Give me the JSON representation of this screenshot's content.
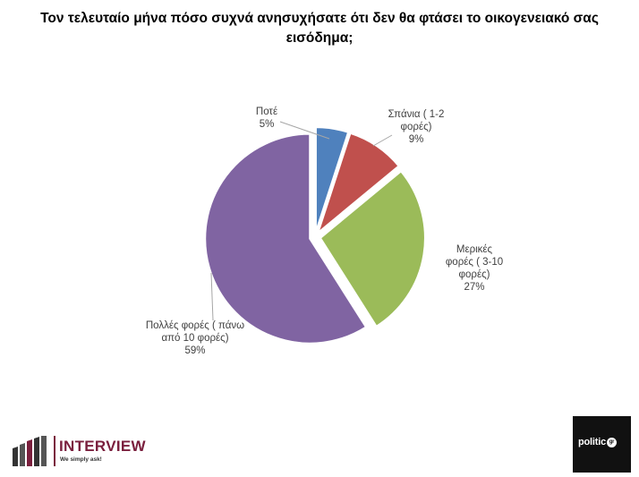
{
  "chart_data": {
    "type": "pie",
    "title_lines": [
      "Τον τελευταίο μήνα πόσο συχνά ανησυχήσατε ότι δεν θα φτάσει το οικογενειακό σας",
      "εισόδημα;"
    ],
    "slices": [
      {
        "label_lines": [
          "Ποτέ",
          "5%"
        ],
        "value": 5,
        "color": "#4f81bd"
      },
      {
        "label_lines": [
          "Σπάνια ( 1-2",
          "φορές)",
          "9%"
        ],
        "value": 9,
        "color": "#c0504d"
      },
      {
        "label_lines": [
          "Μερικές",
          "φορές ( 3-10",
          "φορές)",
          "27%"
        ],
        "value": 27,
        "color": "#9bbb59"
      },
      {
        "label_lines": [
          "Πολλές φορές ( πάνω",
          "από 10 φορές)",
          "59%"
        ],
        "value": 59,
        "color": "#8064a2"
      }
    ],
    "legend": "none",
    "exploded": true
  },
  "logos": {
    "interview_name": "INTERVIEW",
    "interview_tagline": "We simply ask!",
    "interview_color": "#7a1f3d",
    "politic_text": "politic",
    "politic_mark": "gr"
  }
}
